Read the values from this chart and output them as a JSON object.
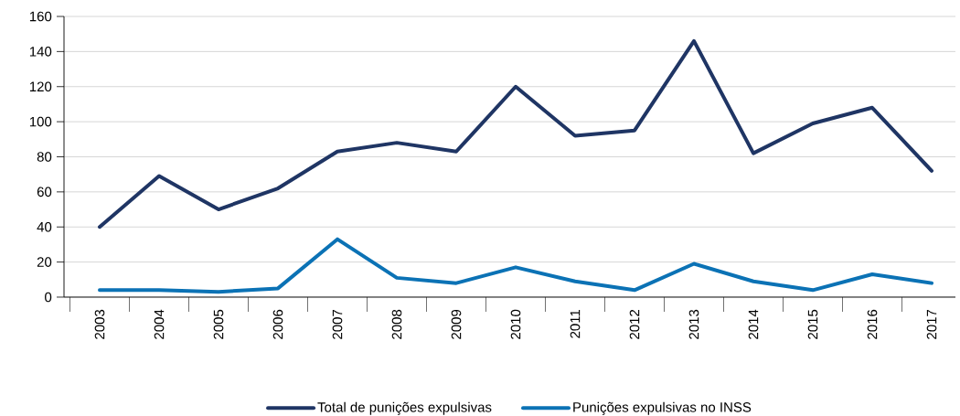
{
  "chart_data": {
    "type": "line",
    "categories": [
      "2003",
      "2004",
      "2005",
      "2006",
      "2007",
      "2008",
      "2009",
      "2010",
      "2011",
      "2012",
      "2013",
      "2014",
      "2015",
      "2016",
      "2017"
    ],
    "series": [
      {
        "name": "Total de punições expulsivas",
        "color": "#1f3564",
        "values": [
          40,
          69,
          50,
          62,
          83,
          88,
          83,
          120,
          92,
          95,
          146,
          82,
          99,
          108,
          72
        ]
      },
      {
        "name": "Punições expulsivas no INSS",
        "color": "#0b72b5",
        "values": [
          4,
          4,
          3,
          5,
          33,
          11,
          8,
          17,
          9,
          4,
          19,
          9,
          4,
          13,
          8
        ]
      }
    ],
    "ylim": [
      0,
      160
    ],
    "yticks": [
      0,
      20,
      40,
      60,
      80,
      100,
      120,
      140,
      160
    ],
    "grid": "y",
    "legend": "bottom"
  }
}
